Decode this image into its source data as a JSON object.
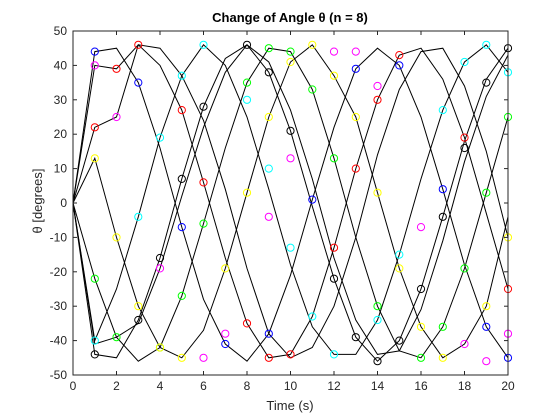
{
  "chart_data": {
    "type": "line",
    "title": "Change of Angle θ (n = 8)",
    "xlabel": "Time (s)",
    "ylabel": "θ [degrees]",
    "xlim": [
      0,
      20
    ],
    "ylim": [
      -50,
      50
    ],
    "xticks": [
      "0",
      "2",
      "4",
      "6",
      "8",
      "10",
      "12",
      "14",
      "16",
      "18",
      "20"
    ],
    "yticks": [
      "50",
      "40",
      "30",
      "20",
      "10",
      "0",
      "-10",
      "-20",
      "-30",
      "-40",
      "-50"
    ],
    "xtick_values": [
      0,
      2,
      4,
      6,
      8,
      10,
      12,
      14,
      16,
      18,
      20
    ],
    "ytick_values": [
      50,
      40,
      30,
      20,
      10,
      0,
      -10,
      -20,
      -30,
      -40,
      -50
    ],
    "grid": false,
    "line_color": "#000000",
    "x": [
      0,
      1,
      2,
      3,
      4,
      5,
      6,
      7,
      8,
      9,
      10,
      11,
      12,
      13,
      14,
      15,
      16,
      17,
      18,
      19,
      20
    ],
    "series": [
      {
        "values": [
          0,
          44,
          45,
          35,
          16,
          -7,
          -28,
          -41,
          -46,
          -38,
          -21,
          1,
          22,
          39,
          45,
          40,
          25,
          4,
          -18,
          -36,
          -45
        ]
      },
      {
        "values": [
          0,
          40,
          39,
          46,
          40,
          27,
          6,
          -16,
          -35,
          -45,
          -44,
          -33,
          -13,
          10,
          30,
          43,
          45,
          36,
          19,
          -3,
          -25
        ]
      },
      {
        "values": [
          0,
          22,
          25,
          46,
          45,
          37,
          24,
          4,
          -19,
          -38,
          -45,
          -42,
          -30,
          -10,
          14,
          33,
          44,
          45,
          34,
          15,
          -10
        ]
      },
      {
        "values": [
          0,
          13,
          -10,
          -30,
          -42,
          -45,
          -37,
          -19,
          3,
          25,
          41,
          46,
          37,
          25,
          3,
          -19,
          -36,
          -45,
          -41,
          -30,
          -4
        ]
      },
      {
        "values": [
          0,
          -22,
          -39,
          -46,
          -42,
          -27,
          -6,
          16,
          35,
          45,
          44,
          33,
          13,
          -10,
          -30,
          -43,
          -45,
          -36,
          -19,
          3,
          25
        ]
      },
      {
        "values": [
          0,
          -40,
          -25,
          -4,
          19,
          37,
          46,
          40,
          25,
          4,
          -18,
          -36,
          -44,
          -44,
          -34,
          -15,
          7,
          27,
          41,
          46,
          38
        ]
      },
      {
        "values": [
          0,
          -41,
          -39,
          -35,
          -19,
          2,
          22,
          38,
          46,
          41,
          27,
          7,
          -16,
          -34,
          -44,
          -43,
          -31,
          -11,
          12,
          31,
          43
        ]
      },
      {
        "values": [
          0,
          -44,
          -45,
          -34,
          -16,
          7,
          28,
          42,
          46,
          38,
          21,
          -1,
          -22,
          -39,
          -46,
          -40,
          -25,
          -4,
          18,
          36,
          45
        ]
      }
    ],
    "markers": [
      {
        "color": "#0000ff",
        "points": [
          [
            1,
            44
          ],
          [
            3,
            35
          ],
          [
            5,
            -7
          ],
          [
            7,
            -41
          ],
          [
            9,
            -38
          ],
          [
            11,
            1
          ],
          [
            13,
            39
          ],
          [
            15,
            40
          ],
          [
            17,
            4
          ],
          [
            19,
            -36
          ],
          [
            20,
            -45
          ]
        ]
      },
      {
        "color": "#ff0000",
        "points": [
          [
            1,
            22
          ],
          [
            2,
            39
          ],
          [
            3,
            46
          ],
          [
            5,
            27
          ],
          [
            6,
            6
          ],
          [
            8,
            -35
          ],
          [
            9,
            -45
          ],
          [
            10,
            -44
          ],
          [
            12,
            -13
          ],
          [
            13,
            10
          ],
          [
            14,
            30
          ],
          [
            15,
            43
          ],
          [
            18,
            19
          ],
          [
            20,
            -25
          ]
        ]
      },
      {
        "color": "#00ff00",
        "points": [
          [
            1,
            -22
          ],
          [
            2,
            -39
          ],
          [
            4,
            -42
          ],
          [
            5,
            -27
          ],
          [
            6,
            -6
          ],
          [
            8,
            35
          ],
          [
            9,
            45
          ],
          [
            10,
            44
          ],
          [
            11,
            33
          ],
          [
            12,
            13
          ],
          [
            14,
            -30
          ],
          [
            16,
            -45
          ],
          [
            17,
            -36
          ],
          [
            18,
            -19
          ],
          [
            19,
            3
          ],
          [
            20,
            25
          ]
        ]
      },
      {
        "color": "#ff00ff",
        "points": [
          [
            1,
            40
          ],
          [
            2,
            25
          ],
          [
            4,
            -19
          ],
          [
            6,
            -45
          ],
          [
            7,
            -38
          ],
          [
            9,
            -4
          ],
          [
            10,
            13
          ],
          [
            12,
            44
          ],
          [
            13,
            44
          ],
          [
            14,
            34
          ],
          [
            16,
            -7
          ],
          [
            18,
            -41
          ],
          [
            19,
            -46
          ],
          [
            20,
            -38
          ]
        ]
      },
      {
        "color": "#00ffff",
        "points": [
          [
            1,
            -40
          ],
          [
            3,
            -4
          ],
          [
            4,
            19
          ],
          [
            5,
            37
          ],
          [
            6,
            46
          ],
          [
            8,
            30
          ],
          [
            9,
            10
          ],
          [
            10,
            -13
          ],
          [
            11,
            -33
          ],
          [
            12,
            -44
          ],
          [
            14,
            -34
          ],
          [
            15,
            -15
          ],
          [
            17,
            27
          ],
          [
            18,
            41
          ],
          [
            19,
            46
          ],
          [
            20,
            38
          ]
        ]
      },
      {
        "color": "#000000",
        "points": [
          [
            1,
            -44
          ],
          [
            3,
            -34
          ],
          [
            4,
            -16
          ],
          [
            5,
            7
          ],
          [
            6,
            28
          ],
          [
            8,
            46
          ],
          [
            9,
            38
          ],
          [
            10,
            21
          ],
          [
            12,
            -22
          ],
          [
            13,
            -39
          ],
          [
            14,
            -46
          ],
          [
            15,
            -40
          ],
          [
            16,
            -25
          ],
          [
            17,
            -4
          ],
          [
            18,
            16
          ],
          [
            19,
            35
          ],
          [
            20,
            45
          ]
        ]
      },
      {
        "color": "#ffff00",
        "points": [
          [
            1,
            13
          ],
          [
            2,
            -10
          ],
          [
            3,
            -30
          ],
          [
            4,
            -42
          ],
          [
            5,
            -45
          ],
          [
            7,
            -19
          ],
          [
            8,
            3
          ],
          [
            9,
            25
          ],
          [
            10,
            41
          ],
          [
            11,
            46
          ],
          [
            12,
            37
          ],
          [
            13,
            25
          ],
          [
            14,
            3
          ],
          [
            15,
            -19
          ],
          [
            16,
            -36
          ],
          [
            17,
            -45
          ],
          [
            19,
            -30
          ],
          [
            20,
            -10
          ]
        ]
      }
    ]
  }
}
